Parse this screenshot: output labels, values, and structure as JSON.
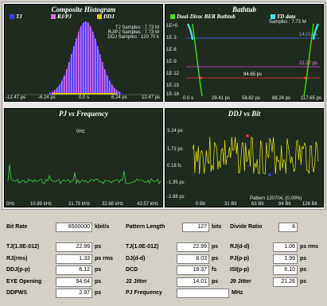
{
  "histogram": {
    "title": "Composite Histogram",
    "legend": [
      {
        "name": "TJ",
        "color": "#3a3aff"
      },
      {
        "name": "RJ/PJ",
        "color": "#e070e0"
      },
      {
        "name": "DDJ",
        "color": "#e0d000"
      }
    ],
    "stats": [
      "TJ Samples : 7.73 M",
      "RJ/PJ Samples : 7.73 M",
      "DDJ Samples : 120.70 k"
    ],
    "xticks": [
      "-12.47 ps",
      "-6.24 ps",
      "0.0 s",
      "6.24 ps",
      "12.47 ps"
    ]
  },
  "bathtub": {
    "title": "Bathtub",
    "legend": [
      {
        "name": "Dual-Dirac BER Bathtub",
        "color": "#40e000"
      },
      {
        "name": "TD data",
        "color": "#40e0e0"
      }
    ],
    "samples": "Samples : 7.73 M",
    "yticks": [
      "1E+0",
      "1E-3",
      "1E-6",
      "1E-9",
      "1E-12",
      "1E-15",
      "1E-18"
    ],
    "xticks": [
      "0.0 s",
      "29.41 ps",
      "58.82 ps",
      "88.24 ps",
      "117.65 ps"
    ],
    "labels": [
      "14.01 ps",
      "21.27 ps",
      "94.65 ps"
    ]
  },
  "pj": {
    "title": "PJ vs Frequency",
    "peak_label": "0Hz",
    "xticks": [
      "0Hz",
      "10.89 kHz",
      "21.79 kHz",
      "32.68 kHz",
      "43.57 kHz"
    ]
  },
  "ddj": {
    "title": "DDJ vs Bit",
    "yticks": [
      "3.24 ps",
      "1.71 ps",
      "0.18 fs",
      "-1.35 ps",
      "-2.88 ps"
    ],
    "xticks": [
      "0 Bit",
      "31 Bit",
      "63 Bit",
      "94 Bit",
      "126 Bit"
    ],
    "pattern": "Pattern 120704, (0.00%)"
  },
  "params": {
    "bit_rate_label": "Bit Rate",
    "bit_rate": "8500000",
    "bit_rate_unit": "kbit/s",
    "pattern_length_label": "Pattern Length",
    "pattern_length": "127",
    "pattern_length_unit": "bits",
    "divide_ratio_label": "Divide Ratio",
    "divide_ratio": "8"
  },
  "measurements": [
    [
      {
        "l": "TJ(1.0E-012)",
        "v": "22.99",
        "u": "ps"
      },
      {
        "l": "TJ(1.0E-012)",
        "v": "22.99",
        "u": "ps"
      },
      {
        "l": "RJ(d-d)",
        "v": "1.06",
        "u": "ps rms"
      }
    ],
    [
      {
        "l": "RJ(rms)",
        "v": "1.33",
        "u": "ps rms"
      },
      {
        "l": "DJ(d-d)",
        "v": "8.03",
        "u": "ps"
      },
      {
        "l": "PJ(p-p)",
        "v": "1.99",
        "u": "ps"
      }
    ],
    [
      {
        "l": "DDJ(p-p)",
        "v": "6.12",
        "u": "ps"
      },
      {
        "l": "DCD",
        "v": "19.37",
        "u": "fs"
      },
      {
        "l": "ISI(p-p)",
        "v": "6.10",
        "u": "ps"
      }
    ],
    [
      {
        "l": "EYE Opening",
        "v": "94.64",
        "u": "ps"
      },
      {
        "l": "J2 Jitter",
        "v": "14.01",
        "u": "ps"
      },
      {
        "l": "J9 Jitter",
        "v": "21.26",
        "u": "ps"
      }
    ],
    [
      {
        "l": "DDPWS",
        "v": "2.97",
        "u": "ps"
      },
      {
        "l": "PJ Frequency",
        "v": "",
        "u": "MHz"
      }
    ]
  ]
}
